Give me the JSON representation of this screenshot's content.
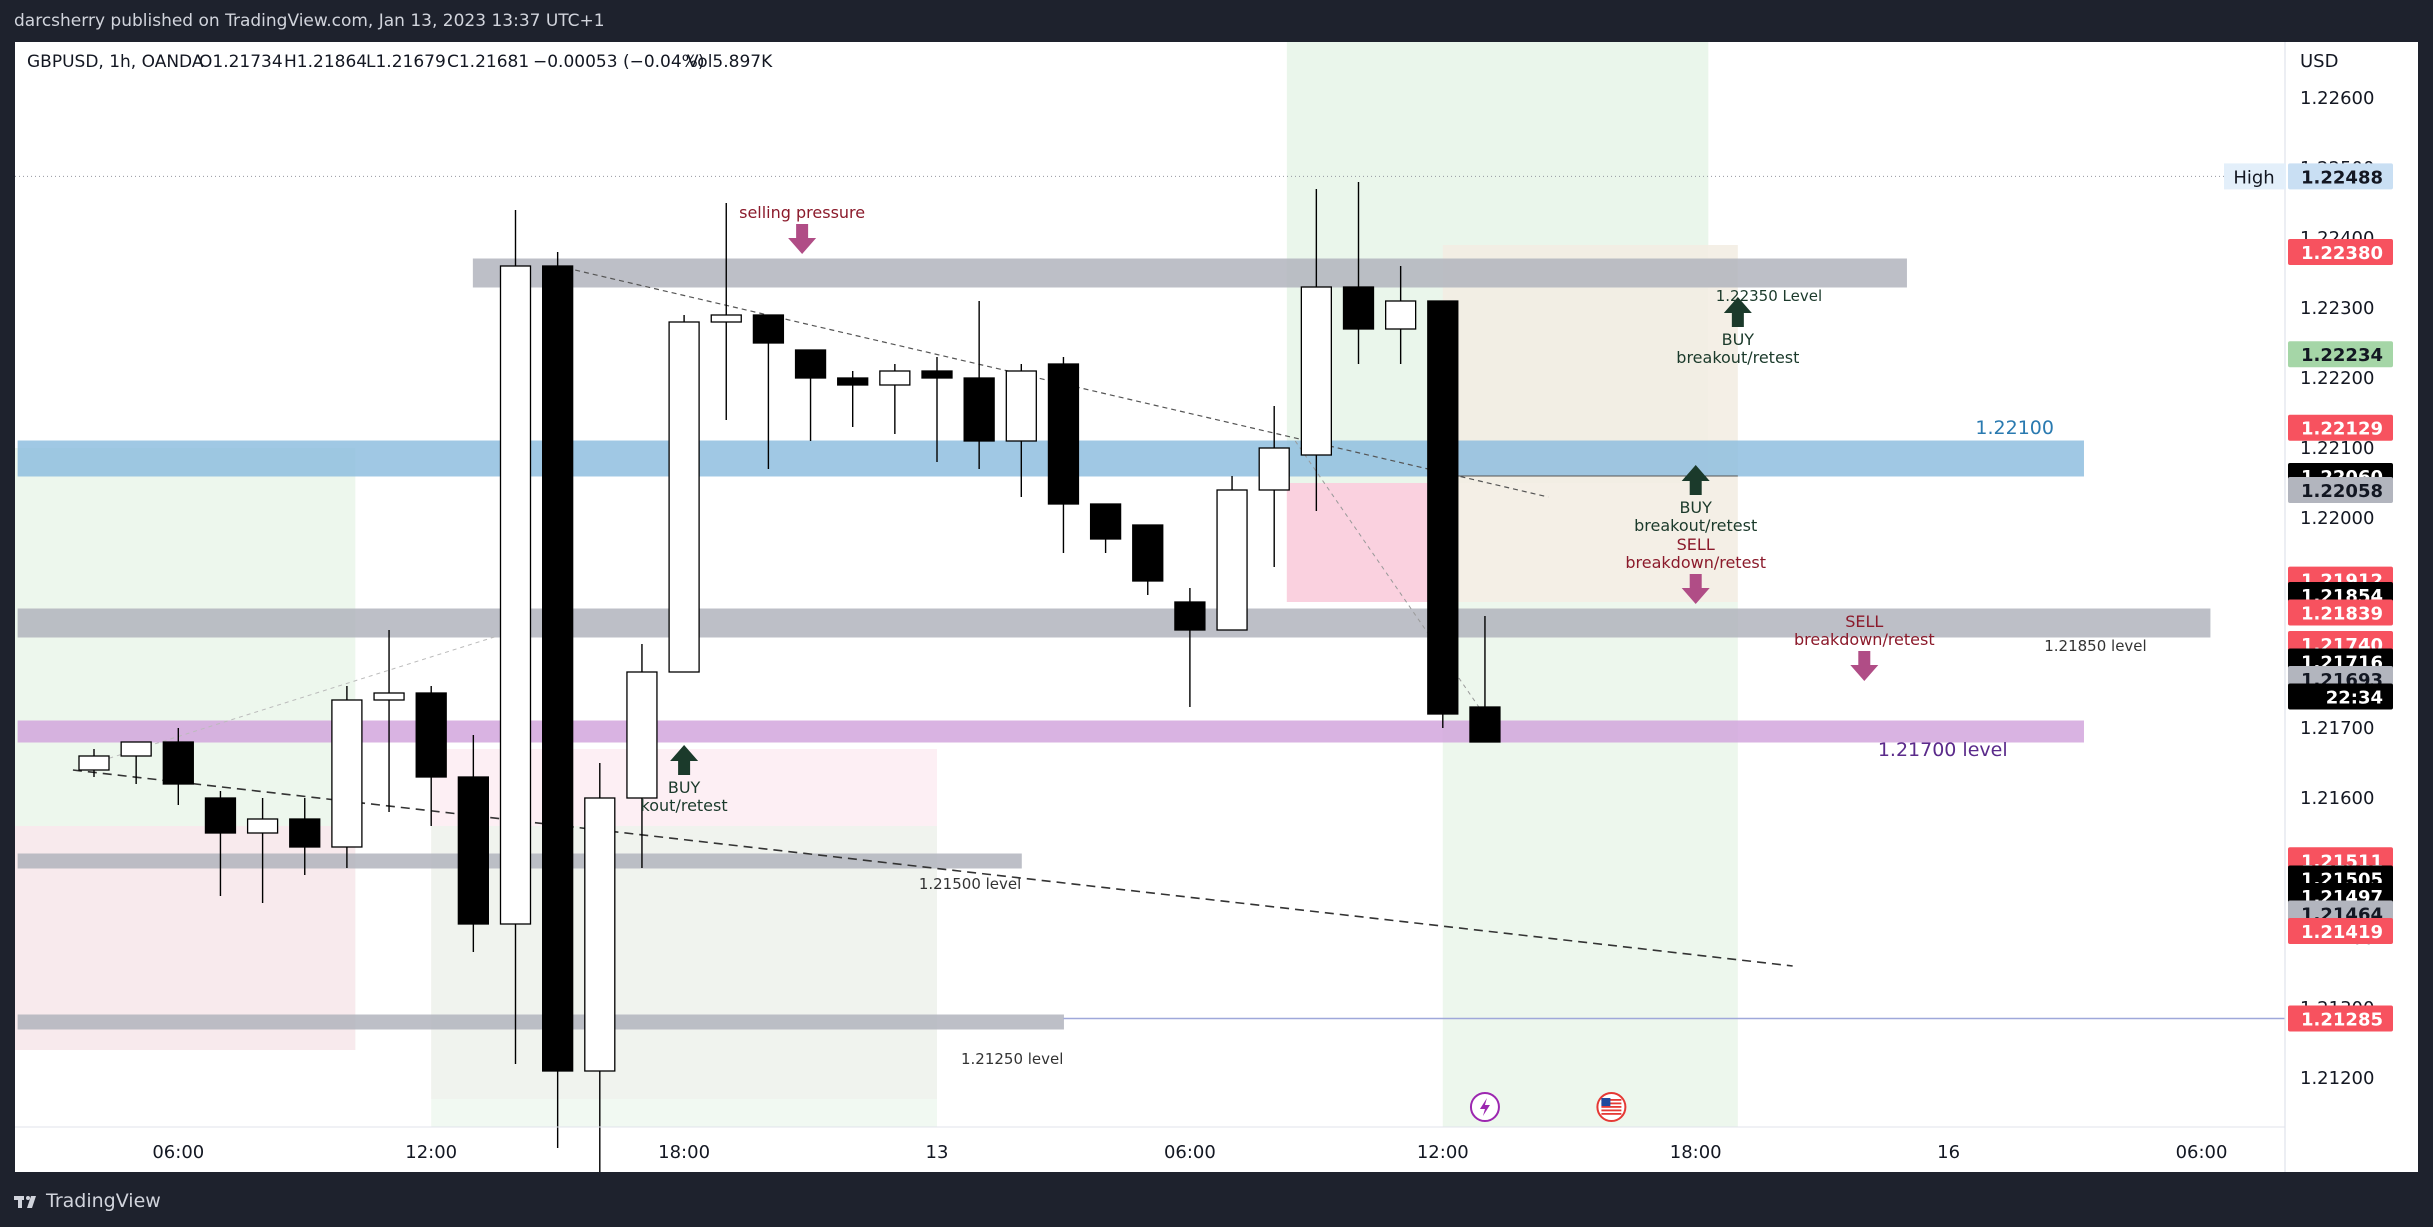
{
  "header": {
    "publisher_line": "darcsherry published on TradingView.com, Jan 13, 2023 13:37 UTC+1"
  },
  "legend": {
    "symbol": "GBPUSD, 1h, OANDA",
    "open": "O1.21734",
    "high": "H1.21864",
    "low": "L1.21679",
    "close": "C1.21681",
    "change": "−0.00053 (−0.04%)",
    "volume": "Vol5.897K"
  },
  "footer": {
    "brand": "TradingView"
  },
  "colors": {
    "up_body": "#ffffff",
    "down_body": "#000000",
    "wick": "#000000",
    "blue_zone": "#90bfe0",
    "purple_zone": "#d3a6dd",
    "grey_zone": "#b2b5be",
    "label_red": "#f7525f",
    "label_black": "#000000",
    "label_grey": "#b2b5be",
    "label_green": "#a5d6a7",
    "label_blue": "#c9dff3",
    "buy_arrow": "#1b3a2b",
    "sell_arrow": "#b04d86",
    "sell_text": "#8b1a2b",
    "buy_text": "#1b3a2b"
  },
  "chart_data": {
    "type": "candlestick",
    "symbol": "GBPUSD",
    "timeframe": "1h",
    "currency": "USD",
    "ylim": [
      1.2113,
      1.2268
    ],
    "y_ticks": [
      "1.21200",
      "1.21300",
      "1.21400",
      "1.21500",
      "1.21600",
      "1.21700",
      "1.21800",
      "1.21900",
      "1.22000",
      "1.22100",
      "1.22200",
      "1.22300",
      "1.22400",
      "1.22500",
      "1.22600"
    ],
    "x_ticks": [
      {
        "label": "06:00",
        "i": 2
      },
      {
        "label": "12:00",
        "i": 8
      },
      {
        "label": "18:00",
        "i": 14
      },
      {
        "label": "13",
        "i": 20
      },
      {
        "label": "06:00",
        "i": 26
      },
      {
        "label": "12:00",
        "i": 32
      },
      {
        "label": "18:00",
        "i": 38
      },
      {
        "label": "16",
        "i": 44
      },
      {
        "label": "06:00",
        "i": 50
      }
    ],
    "candles": [
      {
        "i": 0,
        "o": 1.2164,
        "h": 1.2167,
        "l": 1.2163,
        "c": 1.2166
      },
      {
        "i": 1,
        "o": 1.2166,
        "h": 1.2168,
        "l": 1.2162,
        "c": 1.2168
      },
      {
        "i": 2,
        "o": 1.2168,
        "h": 1.217,
        "l": 1.2159,
        "c": 1.2162
      },
      {
        "i": 3,
        "o": 1.216,
        "h": 1.2161,
        "l": 1.2146,
        "c": 1.2155
      },
      {
        "i": 4,
        "o": 1.2155,
        "h": 1.216,
        "l": 1.2145,
        "c": 1.2157
      },
      {
        "i": 5,
        "o": 1.2157,
        "h": 1.216,
        "l": 1.2149,
        "c": 1.2153
      },
      {
        "i": 6,
        "o": 1.2153,
        "h": 1.2176,
        "l": 1.215,
        "c": 1.2174
      },
      {
        "i": 7,
        "o": 1.2174,
        "h": 1.2184,
        "l": 1.2158,
        "c": 1.2175
      },
      {
        "i": 8,
        "o": 1.2175,
        "h": 1.2176,
        "l": 1.2156,
        "c": 1.2163
      },
      {
        "i": 9,
        "o": 1.2163,
        "h": 1.2169,
        "l": 1.2138,
        "c": 1.2142
      },
      {
        "i": 10,
        "o": 1.2142,
        "h": 1.2244,
        "l": 1.2122,
        "c": 1.2236
      },
      {
        "i": 11,
        "o": 1.2236,
        "h": 1.2238,
        "l": 1.211,
        "c": 1.2121
      },
      {
        "i": 12,
        "o": 1.2121,
        "h": 1.2165,
        "l": 1.2095,
        "c": 1.216
      },
      {
        "i": 13,
        "o": 1.216,
        "h": 1.2182,
        "l": 1.215,
        "c": 1.2178
      },
      {
        "i": 14,
        "o": 1.2178,
        "h": 1.2229,
        "l": 1.2178,
        "c": 1.2228
      },
      {
        "i": 15,
        "o": 1.2228,
        "h": 1.2245,
        "l": 1.2214,
        "c": 1.2229
      },
      {
        "i": 16,
        "o": 1.2229,
        "h": 1.2229,
        "l": 1.2207,
        "c": 1.2225
      },
      {
        "i": 17,
        "o": 1.2224,
        "h": 1.2224,
        "l": 1.2211,
        "c": 1.222
      },
      {
        "i": 18,
        "o": 1.222,
        "h": 1.2221,
        "l": 1.2213,
        "c": 1.2219
      },
      {
        "i": 19,
        "o": 1.2219,
        "h": 1.2222,
        "l": 1.2212,
        "c": 1.2221
      },
      {
        "i": 20,
        "o": 1.2221,
        "h": 1.2223,
        "l": 1.2208,
        "c": 1.222
      },
      {
        "i": 21,
        "o": 1.222,
        "h": 1.2231,
        "l": 1.2207,
        "c": 1.2211
      },
      {
        "i": 22,
        "o": 1.2211,
        "h": 1.2222,
        "l": 1.2203,
        "c": 1.2221
      },
      {
        "i": 23,
        "o": 1.2222,
        "h": 1.2223,
        "l": 1.2195,
        "c": 1.2202
      },
      {
        "i": 24,
        "o": 1.2202,
        "h": 1.2202,
        "l": 1.2195,
        "c": 1.2197
      },
      {
        "i": 25,
        "o": 1.2199,
        "h": 1.2199,
        "l": 1.2189,
        "c": 1.2191
      },
      {
        "i": 26,
        "o": 1.2188,
        "h": 1.219,
        "l": 1.2173,
        "c": 1.2184
      },
      {
        "i": 27,
        "o": 1.2184,
        "h": 1.2206,
        "l": 1.2184,
        "c": 1.2204
      },
      {
        "i": 28,
        "o": 1.2204,
        "h": 1.2216,
        "l": 1.2193,
        "c": 1.221
      },
      {
        "i": 29,
        "o": 1.2209,
        "h": 1.2247,
        "l": 1.2201,
        "c": 1.2233
      },
      {
        "i": 30,
        "o": 1.2233,
        "h": 1.2248,
        "l": 1.2222,
        "c": 1.2227
      },
      {
        "i": 31,
        "o": 1.2227,
        "h": 1.2236,
        "l": 1.2222,
        "c": 1.2231
      },
      {
        "i": 32,
        "o": 1.2231,
        "h": 1.2231,
        "l": 1.217,
        "c": 1.2172
      },
      {
        "i": 33,
        "o": 1.2173,
        "h": 1.2186,
        "l": 1.2168,
        "c": 1.2168
      }
    ],
    "zones": [
      {
        "name": "1.22350 zone",
        "y0": 1.2233,
        "y1": 1.2237,
        "i0": 9,
        "i1": 43,
        "color": "#b2b5be"
      },
      {
        "name": "1.22100 zone",
        "y0": 1.2206,
        "y1": 1.2211,
        "i0": -1.8,
        "i1": 47.2,
        "color": "#90bfe0"
      },
      {
        "name": "1.21850 zone",
        "y0": 1.2183,
        "y1": 1.2187,
        "i0": -1.8,
        "i1": 50.2,
        "color": "#b2b5be"
      },
      {
        "name": "1.21700 zone",
        "y0": 1.2168,
        "y1": 1.2171,
        "i0": -1.8,
        "i1": 47.2,
        "color": "#d3a6dd"
      },
      {
        "name": "1.21500 zone",
        "y0": 1.215,
        "y1": 1.2152,
        "i0": -1.8,
        "i1": 22.0,
        "color": "#b2b5be"
      },
      {
        "name": "1.21250 zone",
        "y0": 1.2127,
        "y1": 1.2129,
        "i0": -1.8,
        "i1": 23.0,
        "color": "#b2b5be"
      }
    ],
    "level_labels": [
      {
        "text": "1.22350 Level",
        "i": 41,
        "y": 1.2231,
        "color": "#1b3a2b"
      },
      {
        "text": "1.22100",
        "i": 46.5,
        "y": 1.2212,
        "color": "#2a7ab0"
      },
      {
        "text": "1.21850 level",
        "i": 48.7,
        "y": 1.2181,
        "color": "#333333"
      },
      {
        "text": "1.21700 level",
        "i": 45.4,
        "y": 1.2166,
        "color": "#5a2a8a"
      },
      {
        "text": "1.21500 level",
        "i": 22.0,
        "y": 1.2147,
        "color": "#333333"
      },
      {
        "text": "1.21250 level",
        "i": 23.0,
        "y": 1.2122,
        "color": "#333333"
      }
    ],
    "annotations": [
      {
        "kind": "sell",
        "lines": [
          "selling pressure"
        ],
        "i": 16.8,
        "y": 1.224,
        "arrow": "down"
      },
      {
        "kind": "buy",
        "lines": [
          "BUY",
          "breakout/retest"
        ],
        "i": 39,
        "y": 1.2231,
        "arrow": "up"
      },
      {
        "kind": "buy",
        "lines": [
          "BUY",
          "breakout/retest"
        ],
        "i": 38,
        "y": 1.2207,
        "arrow": "up"
      },
      {
        "kind": "sell",
        "lines": [
          "SELL",
          "breakdown/retest"
        ],
        "i": 38,
        "y": 1.219,
        "arrow": "down"
      },
      {
        "kind": "sell",
        "lines": [
          "SELL",
          "breakdown/retest"
        ],
        "i": 42,
        "y": 1.2179,
        "arrow": "down"
      },
      {
        "kind": "buy",
        "lines": [
          "BUY",
          "kout/retest"
        ],
        "i": 14,
        "y": 1.2167,
        "arrow": "up"
      }
    ],
    "price_labels": [
      {
        "text": "1.22488",
        "y": 1.22488,
        "color": "#c9dff3",
        "fg": "#131722",
        "tag": "High"
      },
      {
        "text": "1.22380",
        "y": 1.2238,
        "color": "#f7525f",
        "fg": "#ffffff"
      },
      {
        "text": "1.22234",
        "y": 1.22234,
        "color": "#a5d6a7",
        "fg": "#131722"
      },
      {
        "text": "1.22129",
        "y": 1.22129,
        "color": "#f7525f",
        "fg": "#ffffff"
      },
      {
        "text": "1.22060",
        "y": 1.2206,
        "color": "#000000",
        "fg": "#ffffff"
      },
      {
        "text": "1.22058",
        "y": 1.2204,
        "color": "#b2b5be",
        "fg": "#131722"
      },
      {
        "text": "1.21912",
        "y": 1.21912,
        "color": "#f7525f",
        "fg": "#ffffff"
      },
      {
        "text": "1.21854",
        "y": 1.2189,
        "color": "#000000",
        "fg": "#ffffff"
      },
      {
        "text": "1.21839",
        "y": 1.21865,
        "color": "#f7525f",
        "fg": "#ffffff"
      },
      {
        "text": "1.21740",
        "y": 1.2182,
        "color": "#f7525f",
        "fg": "#ffffff"
      },
      {
        "text": "1.21716",
        "y": 1.21795,
        "color": "#000000",
        "fg": "#ffffff"
      },
      {
        "text": "1.21693",
        "y": 1.2177,
        "color": "#b2b5be",
        "fg": "#131722"
      },
      {
        "text": "22:34",
        "y": 1.21745,
        "color": "#000000",
        "fg": "#ffffff"
      },
      {
        "text": "1.21511",
        "y": 1.21511,
        "color": "#f7525f",
        "fg": "#ffffff"
      },
      {
        "text": "1.21505",
        "y": 1.21485,
        "color": "#000000",
        "fg": "#ffffff"
      },
      {
        "text": "1.21497",
        "y": 1.2146,
        "color": "#000000",
        "fg": "#ffffff"
      },
      {
        "text": "1.21464",
        "y": 1.21435,
        "color": "#b2b5be",
        "fg": "#131722"
      },
      {
        "text": "1.21419",
        "y": 1.2141,
        "color": "#f7525f",
        "fg": "#ffffff"
      },
      {
        "text": "1.21285",
        "y": 1.21285,
        "color": "#f7525f",
        "fg": "#ffffff"
      }
    ],
    "event_icons": [
      {
        "name": "lightning-event-icon",
        "i": 33
      },
      {
        "name": "us-flag-event-icon",
        "i": 36
      }
    ]
  }
}
